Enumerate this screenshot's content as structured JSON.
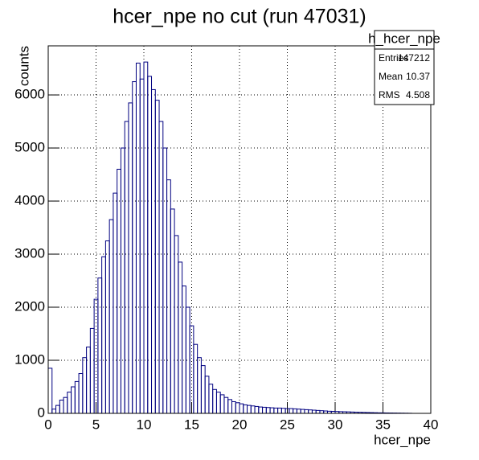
{
  "chart_data": {
    "type": "histogram",
    "title": "hcer_npe no cut (run 47031)",
    "x_label": "hcer_npe",
    "y_label": "counts",
    "color": "#000080",
    "bins": [
      0,
      0.4,
      0.8,
      1.2,
      1.6,
      2.0,
      2.4,
      2.8,
      3.2,
      3.6,
      4.0,
      4.4,
      4.8,
      5.2,
      5.6,
      6.0,
      6.4,
      6.8,
      7.2,
      7.6,
      8.0,
      8.4,
      8.8,
      9.2,
      9.6,
      10.0,
      10.4,
      10.8,
      11.2,
      11.6,
      12.0,
      12.4,
      12.8,
      13.2,
      13.6,
      14.0,
      14.4,
      14.8,
      15.2,
      15.6,
      16.0,
      16.4,
      16.8,
      17.2,
      17.6,
      18.0,
      18.4,
      18.8,
      19.2,
      19.6,
      20.0,
      20.4,
      20.8,
      21.2,
      21.6,
      22.0,
      22.4,
      22.8,
      23.2,
      23.6,
      24.0,
      24.4,
      24.8,
      25.2,
      25.6,
      26.0,
      26.4,
      26.8,
      27.2,
      27.6,
      28.0,
      28.4,
      28.8,
      29.2,
      29.6,
      30.0,
      30.4,
      30.8,
      31.2,
      31.6,
      32.0,
      32.4,
      32.8,
      33.2,
      33.6,
      34.0,
      34.4,
      34.8,
      35.2,
      35.6,
      36.0,
      36.4,
      36.8,
      37.2,
      37.6,
      38.0,
      38.4,
      38.8,
      39.2,
      39.6,
      40.0
    ],
    "counts": [
      850,
      80,
      150,
      250,
      300,
      400,
      500,
      600,
      750,
      1050,
      1250,
      1600,
      2150,
      2550,
      2950,
      3250,
      3650,
      4150,
      4600,
      5000,
      5500,
      5850,
      6250,
      6600,
      6300,
      6620,
      6350,
      6100,
      5900,
      5500,
      5000,
      4400,
      3850,
      3350,
      2850,
      2400,
      2000,
      1650,
      1300,
      1050,
      900,
      700,
      550,
      450,
      400,
      350,
      300,
      260,
      220,
      200,
      180,
      160,
      150,
      140,
      130,
      120,
      115,
      110,
      105,
      100,
      100,
      95,
      90,
      90,
      85,
      80,
      75,
      70,
      65,
      60,
      55,
      50,
      45,
      40,
      38,
      35,
      32,
      30,
      28,
      25,
      22,
      20,
      18,
      16,
      14,
      12,
      10,
      9,
      8,
      7,
      6,
      5,
      4,
      3,
      2,
      0,
      0,
      0,
      0,
      0
    ],
    "xlim": [
      0,
      40
    ],
    "xticks": [
      0,
      5,
      10,
      15,
      20,
      25,
      30,
      35,
      40
    ],
    "ylim": [
      0,
      6925
    ],
    "yticks": [
      0,
      1000,
      2000,
      3000,
      4000,
      5000,
      6000
    ],
    "grid": true,
    "stats": {
      "title": "h_hcer_npe",
      "rows": [
        [
          "Entries",
          "147212"
        ],
        [
          "Mean",
          "10.37"
        ],
        [
          "RMS",
          "4.508"
        ]
      ]
    }
  }
}
